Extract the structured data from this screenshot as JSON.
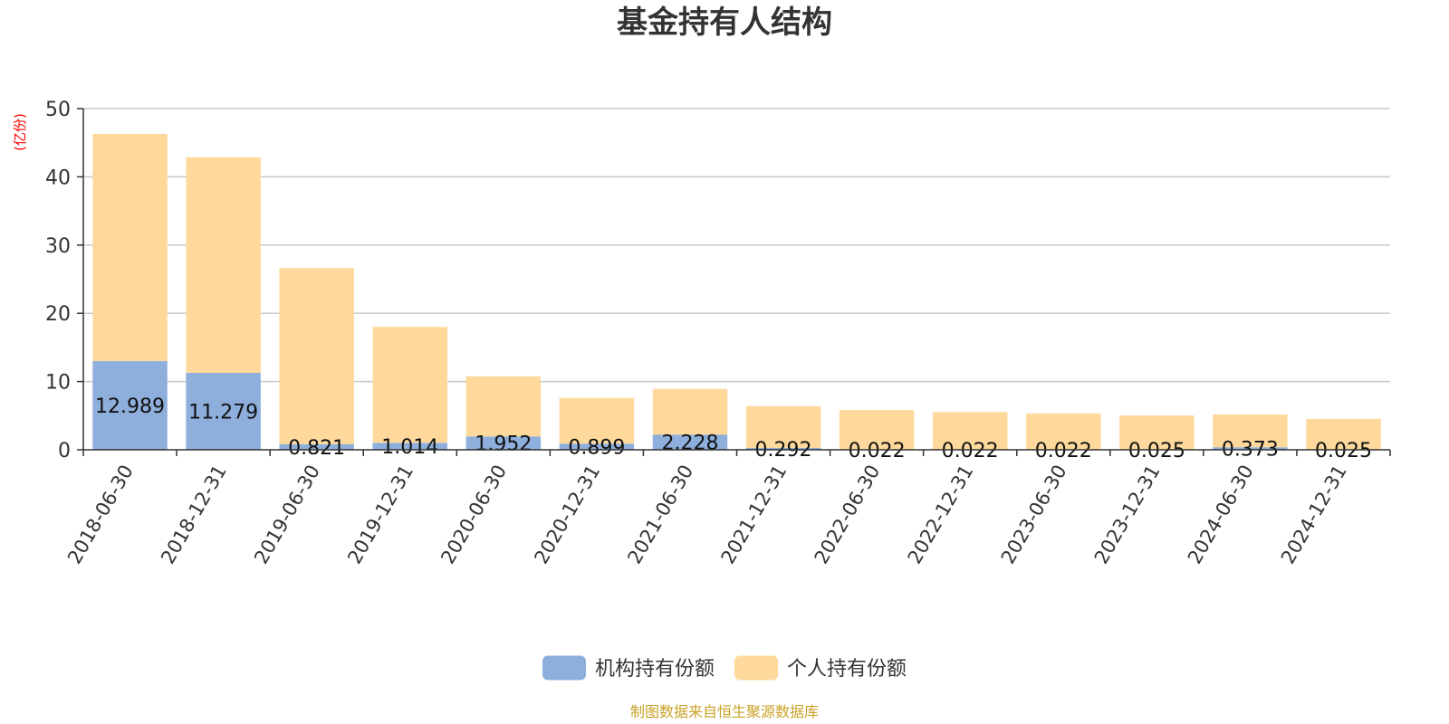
{
  "chart_data": {
    "type": "bar",
    "stacked": true,
    "title": "基金持有人结构",
    "unit": "(亿份)",
    "ylim": [
      0,
      50
    ],
    "yticks": [
      0,
      10,
      20,
      30,
      40,
      50
    ],
    "grid": true,
    "legend_position": "bottom",
    "categories": [
      "2018-06-30",
      "2018-12-31",
      "2019-06-30",
      "2019-12-31",
      "2020-06-30",
      "2020-12-31",
      "2021-06-30",
      "2021-12-31",
      "2022-06-30",
      "2022-12-31",
      "2023-06-30",
      "2023-12-31",
      "2024-06-30",
      "2024-12-31"
    ],
    "series": [
      {
        "name": "机构持有份额",
        "color": "#8eaedb",
        "values": [
          12.989,
          11.279,
          0.821,
          1.014,
          1.952,
          0.899,
          2.228,
          0.292,
          0.022,
          0.022,
          0.022,
          0.025,
          0.373,
          0.025
        ],
        "labels": [
          "12.989",
          "11.279",
          "0.821",
          "1.014",
          "1.952",
          "0.899",
          "2.228",
          "0.292",
          "0.022",
          "0.022",
          "0.022",
          "0.025",
          "0.373",
          "0.025"
        ]
      },
      {
        "name": "个人持有份额",
        "color": "#fed99b",
        "values": [
          33.3,
          31.6,
          25.8,
          17.0,
          8.8,
          6.7,
          6.7,
          6.1,
          5.8,
          5.5,
          5.3,
          5.0,
          4.8,
          4.5
        ]
      }
    ]
  },
  "footer": {
    "source": "制图数据来自恒生聚源数据库",
    "source_color": "#c9a227"
  },
  "unit_color": "#ff0000"
}
